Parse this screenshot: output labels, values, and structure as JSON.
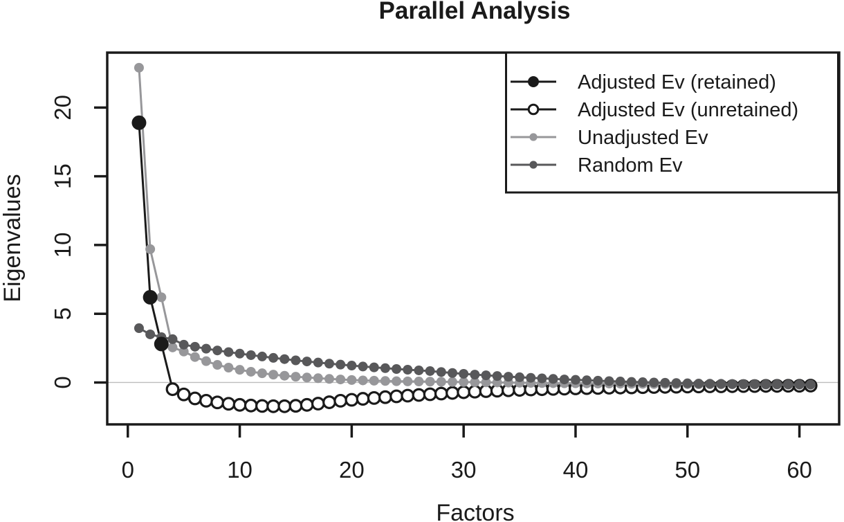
{
  "chart_data": {
    "type": "line",
    "title": "Parallel Analysis",
    "xlabel": "Factors",
    "ylabel": "Eigenvalues",
    "x_ticks": [
      0,
      10,
      20,
      30,
      40,
      50,
      60
    ],
    "y_ticks": [
      0,
      5,
      10,
      15,
      20
    ],
    "xlim": [
      -1.84,
      63.55
    ],
    "ylim": [
      -3.05,
      24.0
    ],
    "grid": "horizontal-zero-line-only",
    "legend_position": "top-right",
    "colors": {
      "black": "#1a1a1a",
      "unadjusted_gray": "#97979a",
      "random_gray": "#58585a",
      "zero_line": "#bdbdbd",
      "background": "#ffffff"
    },
    "series": [
      {
        "name": "Adjusted Ev (retained)",
        "marker": "large-filled-circle",
        "color": "#1a1a1a",
        "x_start": 1,
        "values": [
          18.9,
          6.2,
          2.8
        ]
      },
      {
        "name": "Adjusted Ev (unretained)",
        "marker": "open-circle",
        "color": "#1a1a1a",
        "x_start": 4,
        "values": [
          -0.49,
          -0.87,
          -1.16,
          -1.33,
          -1.45,
          -1.55,
          -1.63,
          -1.68,
          -1.71,
          -1.73,
          -1.73,
          -1.7,
          -1.63,
          -1.54,
          -1.44,
          -1.33,
          -1.26,
          -1.19,
          -1.13,
          -1.07,
          -1.01,
          -0.96,
          -0.91,
          -0.86,
          -0.81,
          -0.76,
          -0.71,
          -0.67,
          -0.63,
          -0.6,
          -0.57,
          -0.54,
          -0.51,
          -0.49,
          -0.47,
          -0.45,
          -0.43,
          -0.41,
          -0.4,
          -0.38,
          -0.37,
          -0.36,
          -0.34,
          -0.33,
          -0.32,
          -0.31,
          -0.3,
          -0.29,
          -0.28,
          -0.28,
          -0.27,
          -0.26,
          -0.26,
          -0.25,
          -0.25,
          -0.24,
          -0.24,
          -0.23
        ]
      },
      {
        "name": "Unadjusted Ev",
        "marker": "filled-circle",
        "color": "#97979a",
        "x_start": 1,
        "values": [
          22.9,
          9.7,
          6.2,
          2.55,
          2.25,
          1.85,
          1.55,
          1.28,
          1.08,
          0.92,
          0.78,
          0.67,
          0.57,
          0.49,
          0.42,
          0.36,
          0.31,
          0.26,
          0.22,
          0.18,
          0.15,
          0.13,
          0.11,
          0.09,
          0.08,
          0.07,
          0.06,
          0.05,
          0.04,
          0.03,
          0.02,
          0.01,
          0.0,
          -0.01,
          -0.02,
          -0.03,
          -0.04,
          -0.05,
          -0.06,
          -0.06,
          -0.07,
          -0.08,
          -0.08,
          -0.09,
          -0.1,
          -0.1,
          -0.11,
          -0.11,
          -0.12,
          -0.12,
          -0.13,
          -0.13,
          -0.14,
          -0.14,
          -0.15,
          -0.15,
          -0.16,
          -0.16,
          -0.16,
          -0.17,
          -0.17
        ]
      },
      {
        "name": "Random Ev",
        "marker": "filled-circle",
        "color": "#58585a",
        "x_start": 1,
        "values": [
          3.95,
          3.5,
          3.3,
          3.15,
          2.75,
          2.6,
          2.46,
          2.33,
          2.21,
          2.1,
          1.99,
          1.89,
          1.79,
          1.7,
          1.61,
          1.53,
          1.45,
          1.37,
          1.3,
          1.23,
          1.16,
          1.1,
          1.04,
          0.98,
          0.93,
          0.88,
          0.83,
          0.76,
          0.69,
          0.63,
          0.57,
          0.52,
          0.47,
          0.42,
          0.38,
          0.34,
          0.3,
          0.26,
          0.22,
          0.19,
          0.16,
          0.13,
          0.1,
          0.07,
          0.04,
          0.02,
          0.0,
          -0.02,
          -0.04,
          -0.06,
          -0.08,
          -0.09,
          -0.1,
          -0.11,
          -0.12,
          -0.12,
          -0.13,
          -0.13,
          -0.14,
          -0.14,
          -0.15
        ]
      }
    ]
  }
}
